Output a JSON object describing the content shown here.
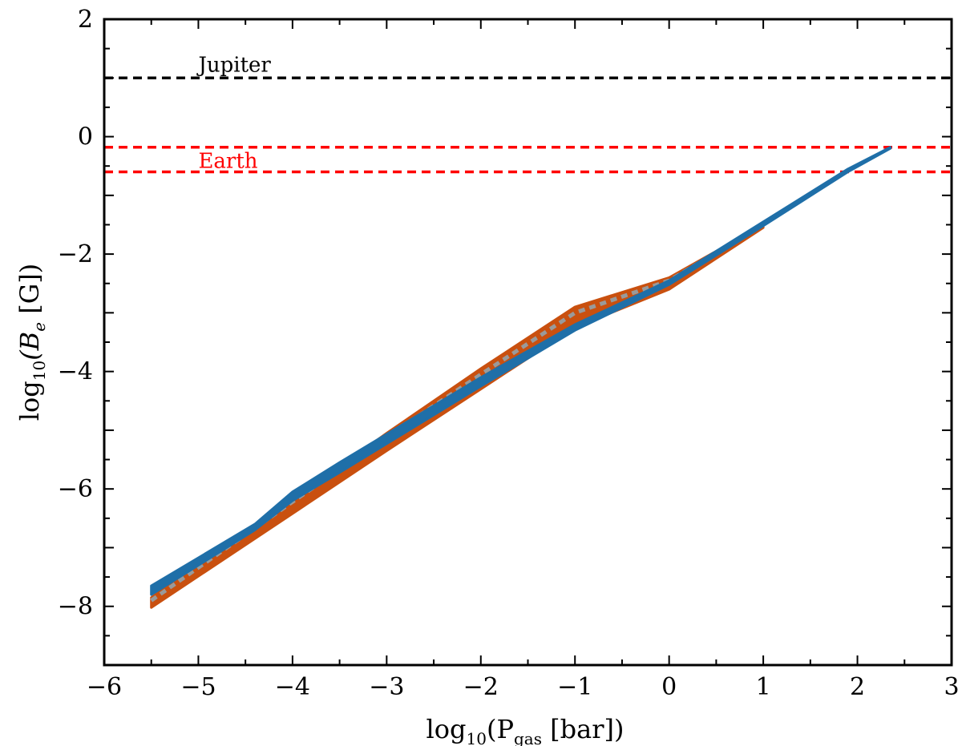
{
  "chart_data": {
    "type": "line",
    "title": "",
    "xlabel": {
      "pre": "log",
      "sub1": "10",
      "mid": "(P",
      "sub2": "gas",
      "post": " [bar])"
    },
    "ylabel": {
      "pre": "log",
      "sub1": "10",
      "mid": "(B",
      "sub2": "e",
      "post": " [G])"
    },
    "xlim": [
      -6,
      3
    ],
    "ylim": [
      -9,
      2
    ],
    "xticks": [
      -6,
      -5,
      -4,
      -3,
      -2,
      -1,
      0,
      1,
      2,
      3
    ],
    "yticks": [
      -8,
      -6,
      -4,
      -2,
      0,
      2
    ],
    "xtick_labels": [
      "−6",
      "−5",
      "−4",
      "−3",
      "−2",
      "−1",
      "0",
      "1",
      "2",
      "3"
    ],
    "ytick_labels": [
      "−8",
      "−6",
      "−4",
      "−2",
      "0",
      "2"
    ],
    "reference_lines": [
      {
        "label": "Jupiter",
        "y": [
          1.0
        ],
        "color": "#000000",
        "style": "dashed"
      },
      {
        "label": "Earth",
        "y": [
          -0.18,
          -0.6
        ],
        "color": "#ff0000",
        "style": "dashed"
      }
    ],
    "series": [
      {
        "color": "#c9500f",
        "band": {
          "x": [
            -5.5,
            -4.0,
            -3.0,
            -2.0,
            -1.0,
            0.0,
            1.0
          ],
          "upper": [
            -7.85,
            -6.2,
            -5.05,
            -3.95,
            -2.9,
            -2.4,
            -1.5
          ],
          "lower": [
            -8.02,
            -6.42,
            -5.35,
            -4.3,
            -3.25,
            -2.6,
            -1.55
          ]
        }
      },
      {
        "color": "#9a9a9a",
        "x": [
          -5.5,
          -4.0,
          -3.0,
          -2.0,
          -1.0,
          0.0,
          1.0
        ],
        "y": [
          -7.9,
          -6.22,
          -5.12,
          -4.05,
          -3.0,
          -2.45,
          -1.5
        ]
      },
      {
        "color": "#1f6fa8",
        "band": {
          "x": [
            -5.5,
            -4.4,
            -4.0,
            -3.5,
            -2.0,
            -1.0,
            0.0,
            1.0,
            1.9,
            2.35
          ],
          "upper": [
            -7.65,
            -6.6,
            -6.05,
            -5.55,
            -4.1,
            -3.2,
            -2.45,
            -1.45,
            -0.55,
            -0.18
          ],
          "lower": [
            -7.8,
            -6.7,
            -6.2,
            -5.72,
            -4.25,
            -3.3,
            -2.52,
            -1.52,
            -0.6,
            -0.2
          ]
        }
      }
    ]
  }
}
